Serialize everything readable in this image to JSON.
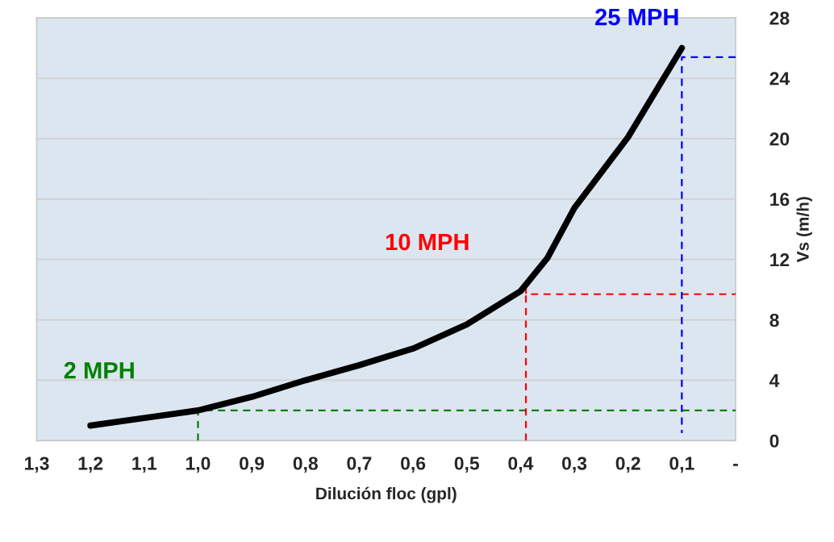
{
  "chart_data": {
    "type": "line",
    "xlabel": "Dilución floc (gpl)",
    "ylabel": "Vs (m/h)",
    "xlim": [
      1.3,
      0
    ],
    "xticks": [
      {
        "value": 1.3,
        "label": "1,3"
      },
      {
        "value": 1.2,
        "label": "1,2"
      },
      {
        "value": 1.1,
        "label": "1,1"
      },
      {
        "value": 1.0,
        "label": "1,0"
      },
      {
        "value": 0.9,
        "label": "0,9"
      },
      {
        "value": 0.8,
        "label": "0,8"
      },
      {
        "value": 0.7,
        "label": "0,7"
      },
      {
        "value": 0.6,
        "label": "0,6"
      },
      {
        "value": 0.5,
        "label": "0,5"
      },
      {
        "value": 0.4,
        "label": "0,4"
      },
      {
        "value": 0.3,
        "label": "0,3"
      },
      {
        "value": 0.2,
        "label": "0,2"
      },
      {
        "value": 0.1,
        "label": "0,1"
      },
      {
        "value": 0,
        "label": "-"
      }
    ],
    "ylim": [
      0,
      28
    ],
    "yticks": [
      0,
      4,
      8,
      12,
      16,
      20,
      24,
      28
    ],
    "grid": "y",
    "series": [
      {
        "color": "#000000",
        "line_style": "solid",
        "x": [
          1.2,
          1.1,
          1.0,
          0.9,
          0.8,
          0.7,
          0.6,
          0.5,
          0.4,
          0.35,
          0.3,
          0.2,
          0.1
        ],
        "values": [
          1.0,
          1.5,
          2.0,
          2.9,
          4.0,
          5.0,
          6.1,
          7.7,
          9.9,
          12.1,
          15.4,
          20.1,
          26.0
        ]
      },
      {
        "name": "2 MPH",
        "color": "#008000",
        "line_style": "dashed",
        "x": [
          1.0,
          1.0,
          0
        ],
        "values": [
          0,
          2,
          2
        ]
      },
      {
        "name": "10 MPH",
        "color": "#ff0000",
        "line_style": "dashed",
        "x": [
          0.39,
          0.39,
          0.39,
          0
        ],
        "values": [
          0,
          10.5,
          9.7,
          9.7
        ]
      },
      {
        "name": "25 MPH",
        "color": "#0000ff",
        "line_style": "dashed",
        "x": [
          0,
          0.1,
          0.1
        ],
        "values": [
          25.4,
          25.4,
          0.5
        ]
      }
    ]
  }
}
